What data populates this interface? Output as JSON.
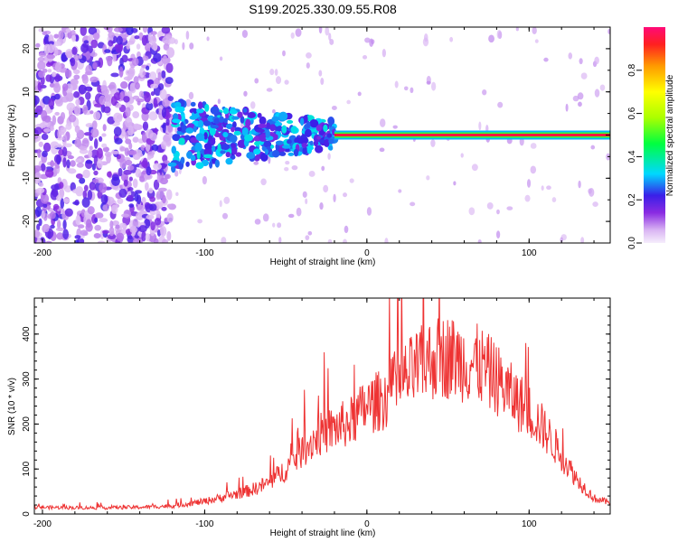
{
  "title": "S199.2025.330.09.55.R08",
  "chart_data": [
    {
      "type": "heatmap",
      "name": "spectrogram",
      "xlabel": "Height of straight line (km)",
      "ylabel": "Frequency (Hz)",
      "xlim": [
        -205,
        150
      ],
      "ylim": [
        -25,
        25
      ],
      "x_ticks": [
        -200,
        -100,
        0,
        100
      ],
      "x_tick_labels": [
        "-200",
        "-100",
        "0",
        "100"
      ],
      "y_ticks": [
        -20,
        -10,
        0,
        10,
        20
      ],
      "y_tick_labels": [
        "-20",
        "-10",
        "0",
        "10",
        "20"
      ],
      "colorbar": {
        "label": "Normalized spectral amplitude",
        "range": [
          0,
          1
        ],
        "ticks": [
          0,
          0.2,
          0.4,
          0.6,
          0.8
        ],
        "tick_labels": [
          "0.0",
          "0.2",
          "0.4",
          "0.6",
          "0.8"
        ]
      },
      "regions": [
        {
          "x": [
            -205,
            -120
          ],
          "freq": [
            -25,
            25
          ],
          "amplitude": 0.15
        },
        {
          "x": [
            -120,
            -20
          ],
          "freq": [
            -10,
            10
          ],
          "amplitude": 0.3
        },
        {
          "x": [
            -20,
            150
          ],
          "freq": [
            -1,
            1
          ],
          "amplitude": 0.95
        }
      ],
      "line": {
        "x": [
          -20,
          150
        ],
        "freq": 0,
        "amplitude": 0.95
      }
    },
    {
      "type": "line",
      "name": "snr",
      "xlabel": "Height of straight line (km)",
      "ylabel": "SNR (10 * v/v)",
      "xlim": [
        -205,
        150
      ],
      "ylim": [
        0,
        480
      ],
      "x_ticks": [
        -200,
        -100,
        0,
        100
      ],
      "x_tick_labels": [
        "-200",
        "-100",
        "0",
        "100"
      ],
      "y_ticks": [
        0,
        100,
        200,
        300,
        400
      ],
      "y_tick_labels": [
        "0",
        "100",
        "200",
        "300",
        "400"
      ],
      "series": [
        {
          "name": "SNR",
          "color": "#ee3333",
          "x": [
            -205,
            -180,
            -160,
            -140,
            -120,
            -100,
            -80,
            -70,
            -60,
            -50,
            -40,
            -30,
            -20,
            -10,
            0,
            10,
            20,
            30,
            40,
            50,
            60,
            70,
            80,
            90,
            100,
            110,
            120,
            130,
            140,
            150
          ],
          "y": [
            15,
            14,
            14,
            15,
            18,
            28,
            45,
            55,
            70,
            100,
            140,
            175,
            190,
            205,
            240,
            255,
            290,
            320,
            345,
            350,
            340,
            330,
            300,
            260,
            230,
            185,
            130,
            75,
            35,
            25
          ]
        }
      ]
    }
  ]
}
